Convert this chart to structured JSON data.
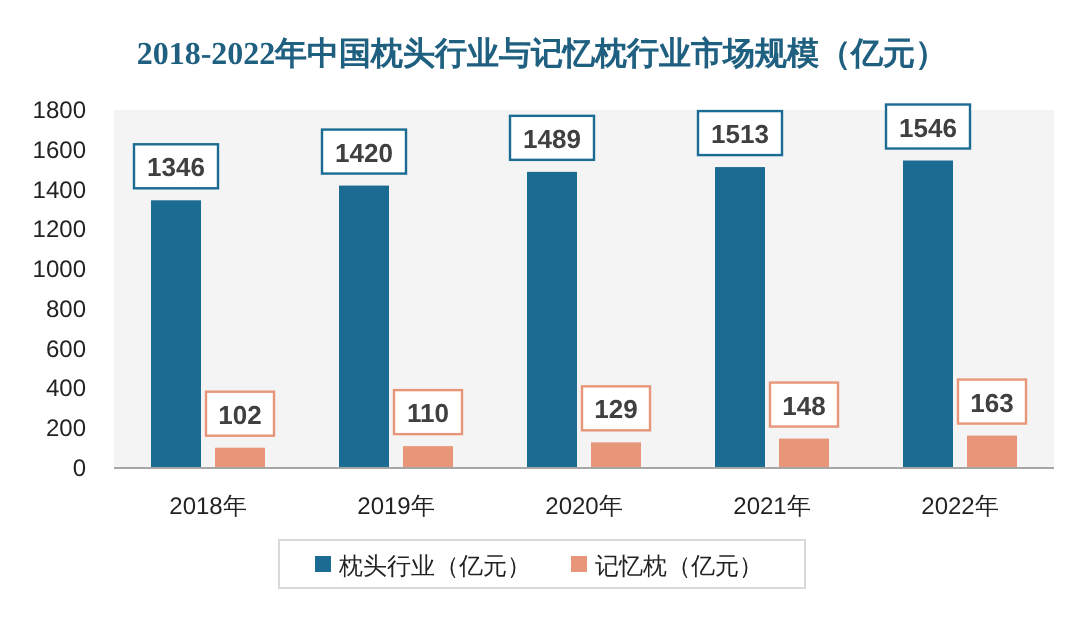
{
  "chart_data": {
    "type": "bar",
    "title": "2018-2022年中国枕头行业与记忆枕行业市场规模（亿元）",
    "categories": [
      "2018年",
      "2019年",
      "2020年",
      "2021年",
      "2022年"
    ],
    "series": [
      {
        "name": "枕头行业（亿元）",
        "color": "#1b6b93",
        "values": [
          1346,
          1420,
          1489,
          1513,
          1546
        ]
      },
      {
        "name": "记忆枕（亿元）",
        "color": "#e8967a",
        "values": [
          102,
          110,
          129,
          148,
          163
        ]
      }
    ],
    "ylim": [
      0,
      1800
    ],
    "yticks": [
      0,
      200,
      400,
      600,
      800,
      1000,
      1200,
      1400,
      1600,
      1800
    ],
    "grid": false,
    "legend": "bottom",
    "data_labels": true
  }
}
